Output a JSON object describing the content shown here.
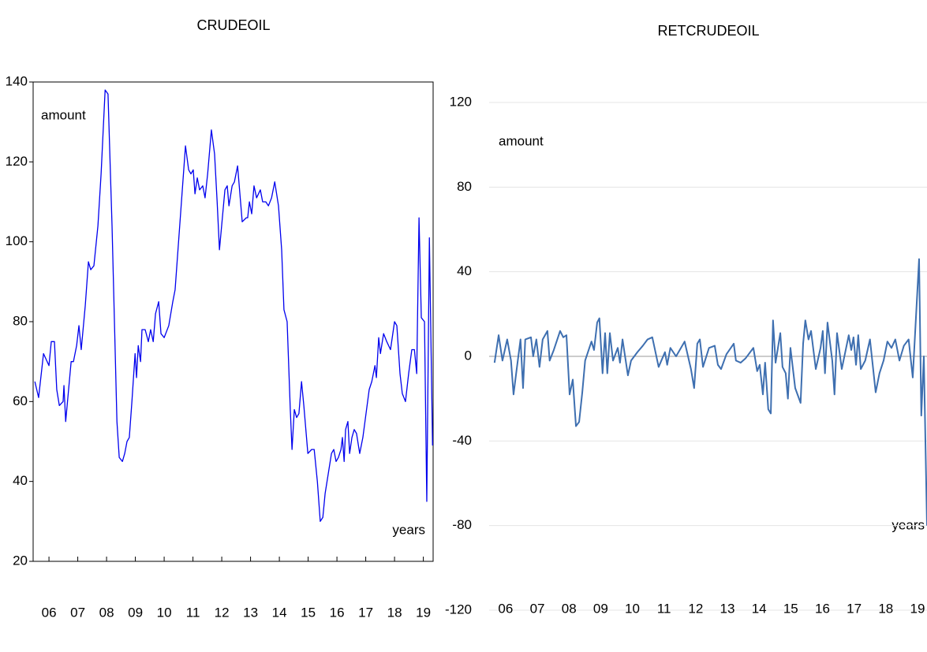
{
  "chart_data": [
    {
      "type": "line",
      "title": "CRUDEOIL",
      "y_label": "amount",
      "x_label": "years",
      "color": "#0000ee",
      "grid": false,
      "frame": true,
      "xlim": [
        5.45,
        19.34
      ],
      "ylim": [
        20,
        140
      ],
      "yticks": [
        20,
        40,
        60,
        80,
        100,
        120,
        140
      ],
      "xticks": [
        {
          "value": 6,
          "label": "06"
        },
        {
          "value": 7,
          "label": "07"
        },
        {
          "value": 8,
          "label": "08"
        },
        {
          "value": 9,
          "label": "09"
        },
        {
          "value": 10,
          "label": "10"
        },
        {
          "value": 11,
          "label": "11"
        },
        {
          "value": 12,
          "label": "12"
        },
        {
          "value": 13,
          "label": "13"
        },
        {
          "value": 14,
          "label": "14"
        },
        {
          "value": 15,
          "label": "15"
        },
        {
          "value": 16,
          "label": "16"
        },
        {
          "value": 17,
          "label": "17"
        },
        {
          "value": 18,
          "label": "18"
        },
        {
          "value": 19,
          "label": "19"
        }
      ],
      "x": [
        5.51,
        5.64,
        5.81,
        6.0,
        6.08,
        6.19,
        6.27,
        6.36,
        6.49,
        6.52,
        6.58,
        6.77,
        6.85,
        6.96,
        7.04,
        7.12,
        7.26,
        7.37,
        7.45,
        7.56,
        7.7,
        7.81,
        7.95,
        8.05,
        8.19,
        8.36,
        8.44,
        8.55,
        8.63,
        8.71,
        8.79,
        8.88,
        8.99,
        9.04,
        9.1,
        9.18,
        9.23,
        9.34,
        9.45,
        9.53,
        9.62,
        9.7,
        9.81,
        9.89,
        10.0,
        10.16,
        10.3,
        10.38,
        10.58,
        10.74,
        10.85,
        10.93,
        11.01,
        11.07,
        11.15,
        11.23,
        11.34,
        11.42,
        11.51,
        11.64,
        11.75,
        11.84,
        11.92,
        12.11,
        12.19,
        12.25,
        12.36,
        12.44,
        12.55,
        12.63,
        12.71,
        12.85,
        12.9,
        12.96,
        13.04,
        13.12,
        13.21,
        13.34,
        13.42,
        13.53,
        13.62,
        13.73,
        13.84,
        13.97,
        14.08,
        14.16,
        14.27,
        14.38,
        14.44,
        14.52,
        14.6,
        14.68,
        14.77,
        14.85,
        14.99,
        15.12,
        15.21,
        15.32,
        15.42,
        15.51,
        15.59,
        15.7,
        15.81,
        15.89,
        15.97,
        16.05,
        16.14,
        16.19,
        16.25,
        16.3,
        16.38,
        16.44,
        16.52,
        16.6,
        16.68,
        16.79,
        16.9,
        17.01,
        17.12,
        17.21,
        17.32,
        17.37,
        17.45,
        17.51,
        17.62,
        17.73,
        17.86,
        18.0,
        18.08,
        18.19,
        18.27,
        18.38,
        18.49,
        18.6,
        18.69,
        18.77,
        18.85,
        18.93,
        19.04,
        19.12,
        19.21,
        19.32
      ],
      "values": [
        65,
        61,
        72,
        69,
        75,
        75,
        63,
        59,
        60,
        64,
        55,
        70,
        70,
        74,
        79,
        73,
        84,
        95,
        93,
        94,
        104,
        117,
        138,
        137,
        104,
        55,
        46,
        45,
        47,
        50,
        51,
        60,
        72,
        66,
        74,
        70,
        78,
        78,
        75,
        78,
        75,
        82,
        85,
        77,
        76,
        79,
        85,
        88,
        108,
        124,
        118,
        117,
        118,
        112,
        116,
        113,
        114,
        111,
        117,
        128,
        122,
        110,
        98,
        113,
        114,
        109,
        114,
        115,
        119,
        112,
        105,
        106,
        106,
        110,
        107,
        114,
        111,
        113,
        110,
        110,
        109,
        111,
        115,
        109,
        98,
        83,
        80,
        58,
        48,
        58,
        56,
        57,
        65,
        59,
        47,
        48,
        48,
        40,
        30,
        31,
        37,
        42,
        47,
        48,
        45,
        46,
        48,
        51,
        45,
        53,
        55,
        47,
        51,
        53,
        52,
        47,
        51,
        57,
        63,
        65,
        69,
        66,
        76,
        72,
        77,
        75,
        73,
        80,
        79,
        67,
        62,
        60,
        67,
        73,
        73,
        67,
        106,
        81,
        80,
        35,
        101,
        49
      ]
    },
    {
      "type": "line",
      "title": "RETCRUDEOIL",
      "y_label": "amount",
      "x_label": "years",
      "color": "#3e6fb0",
      "grid": true,
      "frame": false,
      "xlim": [
        5.48,
        19.3
      ],
      "ylim": [
        -120,
        120
      ],
      "yticks": [
        -120,
        -80,
        -40,
        0,
        40,
        80,
        120
      ],
      "xticks": [
        {
          "value": 6,
          "label": "06"
        },
        {
          "value": 7,
          "label": "07"
        },
        {
          "value": 8,
          "label": "08"
        },
        {
          "value": 9,
          "label": "09"
        },
        {
          "value": 10,
          "label": "10"
        },
        {
          "value": 11,
          "label": "11"
        },
        {
          "value": 12,
          "label": "12"
        },
        {
          "value": 13,
          "label": "13"
        },
        {
          "value": 14,
          "label": "14"
        },
        {
          "value": 15,
          "label": "15"
        },
        {
          "value": 16,
          "label": "16"
        },
        {
          "value": 17,
          "label": "17"
        },
        {
          "value": 18,
          "label": "18"
        },
        {
          "value": 19,
          "label": "19"
        }
      ],
      "x": [
        5.65,
        5.78,
        5.9,
        6.05,
        6.17,
        6.25,
        6.35,
        6.47,
        6.55,
        6.62,
        6.8,
        6.87,
        6.97,
        7.07,
        7.17,
        7.32,
        7.39,
        7.52,
        7.72,
        7.82,
        7.92,
        8.02,
        8.12,
        8.22,
        8.32,
        8.42,
        8.51,
        8.71,
        8.79,
        8.89,
        8.96,
        9.06,
        9.14,
        9.21,
        9.29,
        9.39,
        9.54,
        9.61,
        9.69,
        9.86,
        9.96,
        10.16,
        10.33,
        10.48,
        10.63,
        10.83,
        11.03,
        11.1,
        11.2,
        11.38,
        11.65,
        11.85,
        11.95,
        12.05,
        12.13,
        12.23,
        12.42,
        12.6,
        12.7,
        12.8,
        12.97,
        13.2,
        13.27,
        13.42,
        13.57,
        13.82,
        13.94,
        14.02,
        14.12,
        14.19,
        14.29,
        14.37,
        14.44,
        14.52,
        14.67,
        14.74,
        14.84,
        14.91,
        14.99,
        15.14,
        15.31,
        15.39,
        15.46,
        15.56,
        15.64,
        15.79,
        15.94,
        16.01,
        16.08,
        16.16,
        16.31,
        16.38,
        16.46,
        16.61,
        16.83,
        16.91,
        16.98,
        17.06,
        17.13,
        17.21,
        17.35,
        17.5,
        17.68,
        17.8,
        17.93,
        18.05,
        18.18,
        18.3,
        18.43,
        18.57,
        18.72,
        18.85,
        19.05,
        19.12,
        19.2,
        19.3
      ],
      "values": [
        -3,
        10,
        -2,
        8,
        -2,
        -18,
        -6,
        8,
        -15,
        8,
        9,
        0,
        8,
        -5,
        8,
        12,
        -2,
        3,
        12,
        9,
        10,
        -18,
        -11,
        -33,
        -31,
        -17,
        -2,
        7,
        3,
        16,
        18,
        -8,
        11,
        -8,
        11,
        -2,
        4,
        -3,
        8,
        -9,
        -2,
        2,
        5,
        8,
        9,
        -5,
        2,
        -4,
        4,
        0,
        7,
        -6,
        -15,
        6,
        8,
        -5,
        4,
        5,
        -4,
        -6,
        1,
        6,
        -2,
        -3,
        -1,
        4,
        -7,
        -4,
        -18,
        -3,
        -25,
        -27,
        17,
        -3,
        11,
        -5,
        -8,
        -20,
        4,
        -15,
        -22,
        6,
        17,
        8,
        12,
        -6,
        4,
        12,
        -8,
        16,
        -2,
        -18,
        11,
        -6,
        10,
        3,
        9,
        -4,
        10,
        -6,
        -2,
        8,
        -17,
        -8,
        -2,
        7,
        4,
        8,
        -2,
        5,
        8,
        -10,
        46,
        -28,
        0,
        -80
      ]
    }
  ]
}
